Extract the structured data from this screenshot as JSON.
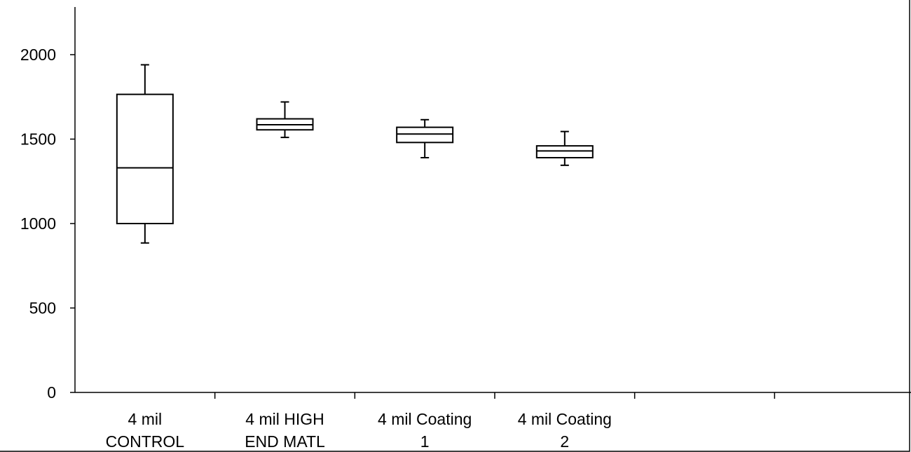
{
  "chart_data": {
    "type": "box",
    "title": "",
    "xlabel": "",
    "ylabel": "",
    "ylim": [
      0,
      2000
    ],
    "y_ticks": [
      "0",
      "500",
      "1000",
      "1500",
      "2000"
    ],
    "categories": [
      [
        "4 mil",
        "CONTROL"
      ],
      [
        "4 mil HIGH",
        "END MATL"
      ],
      [
        "4 mil Coating",
        "1"
      ],
      [
        "4 mil Coating",
        "2"
      ]
    ],
    "boxes": [
      {
        "whisker_low": 885,
        "q1": 1000,
        "median": 1330,
        "q3": 1765,
        "whisker_high": 1940
      },
      {
        "whisker_low": 1510,
        "q1": 1555,
        "median": 1585,
        "q3": 1620,
        "whisker_high": 1720
      },
      {
        "whisker_low": 1390,
        "q1": 1480,
        "median": 1530,
        "q3": 1570,
        "whisker_high": 1615
      },
      {
        "whisker_low": 1345,
        "q1": 1390,
        "median": 1430,
        "q3": 1460,
        "whisker_high": 1545
      }
    ],
    "category_slots": 6,
    "grid": false,
    "legend": "none"
  },
  "colors": {
    "stroke": "#000000",
    "background": "#ffffff"
  }
}
